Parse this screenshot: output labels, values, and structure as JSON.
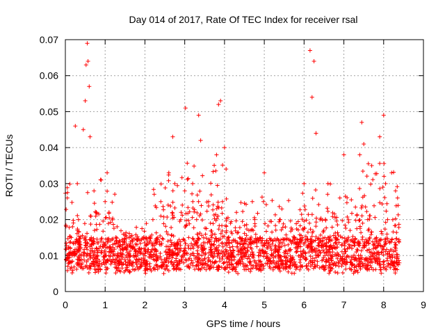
{
  "chart_data": {
    "type": "scatter",
    "title": "Day 014 of 2017, Rate Of TEC Index for receiver rsal",
    "xlabel": "GPS time / hours",
    "ylabel": "ROTI / TECUs",
    "xlim": [
      0,
      9
    ],
    "ylim": [
      0,
      0.07
    ],
    "x_ticks": [
      "0",
      "1",
      "2",
      "3",
      "4",
      "5",
      "6",
      "7",
      "8",
      "9"
    ],
    "y_ticks": [
      "0",
      "0.01",
      "0.02",
      "0.03",
      "0.04",
      "0.05",
      "0.06",
      "0.07"
    ],
    "grid": true,
    "marker": "plus",
    "color": "#ff0000",
    "sampled_points": {
      "x": [
        0.02,
        0.05,
        0.08,
        0.1,
        0.12,
        0.15,
        0.18,
        0.22,
        0.25,
        0.3,
        0.33,
        0.36,
        0.4,
        0.45,
        0.5,
        0.52,
        0.55,
        0.57,
        0.6,
        0.62,
        0.65,
        0.7,
        0.72,
        0.78,
        0.82,
        0.85,
        0.9,
        0.95,
        1.0,
        1.05,
        1.1,
        1.2,
        1.3,
        1.4,
        1.5,
        1.6,
        1.7,
        1.8,
        1.9,
        2.0,
        2.1,
        2.2,
        2.3,
        2.4,
        2.5,
        2.6,
        2.7,
        2.75,
        2.8,
        2.9,
        3.0,
        3.02,
        3.1,
        3.2,
        3.3,
        3.35,
        3.4,
        3.5,
        3.6,
        3.7,
        3.8,
        3.85,
        3.9,
        3.95,
        4.0,
        4.1,
        4.2,
        4.3,
        4.5,
        4.7,
        4.9,
        5.0,
        5.2,
        5.4,
        5.6,
        5.8,
        6.0,
        6.1,
        6.15,
        6.2,
        6.25,
        6.3,
        6.4,
        6.5,
        6.6,
        6.8,
        6.9,
        7.0,
        7.2,
        7.4,
        7.45,
        7.5,
        7.6,
        7.7,
        7.8,
        7.9,
        8.0,
        8.05,
        8.1,
        8.2,
        8.3,
        8.35
      ],
      "y": [
        0.009,
        0.026,
        0.012,
        0.008,
        0.011,
        0.015,
        0.018,
        0.01,
        0.046,
        0.03,
        0.02,
        0.012,
        0.009,
        0.045,
        0.053,
        0.063,
        0.069,
        0.064,
        0.057,
        0.043,
        0.015,
        0.011,
        0.028,
        0.022,
        0.009,
        0.012,
        0.031,
        0.008,
        0.025,
        0.033,
        0.011,
        0.009,
        0.018,
        0.009,
        0.012,
        0.01,
        0.008,
        0.013,
        0.011,
        0.007,
        0.015,
        0.02,
        0.01,
        0.025,
        0.008,
        0.033,
        0.043,
        0.03,
        0.012,
        0.02,
        0.028,
        0.051,
        0.015,
        0.03,
        0.02,
        0.049,
        0.042,
        0.012,
        0.025,
        0.016,
        0.038,
        0.052,
        0.053,
        0.025,
        0.04,
        0.015,
        0.01,
        0.022,
        0.012,
        0.025,
        0.015,
        0.033,
        0.01,
        0.02,
        0.013,
        0.011,
        0.03,
        0.014,
        0.067,
        0.054,
        0.064,
        0.044,
        0.02,
        0.011,
        0.03,
        0.012,
        0.026,
        0.038,
        0.012,
        0.038,
        0.047,
        0.041,
        0.02,
        0.035,
        0.012,
        0.043,
        0.049,
        0.03,
        0.02,
        0.033,
        0.028,
        0.026
      ]
    },
    "bands": [
      {
        "x0": 0.0,
        "x1": 0.55,
        "ymin": 0.005,
        "ymax": 0.03
      },
      {
        "x0": 0.55,
        "x1": 1.25,
        "ymin": 0.005,
        "ymax": 0.032
      },
      {
        "x0": 1.25,
        "x1": 2.2,
        "ymin": 0.005,
        "ymax": 0.019
      },
      {
        "x0": 2.2,
        "x1": 2.9,
        "ymin": 0.005,
        "ymax": 0.035
      },
      {
        "x0": 2.9,
        "x1": 4.1,
        "ymin": 0.006,
        "ymax": 0.036
      },
      {
        "x0": 4.1,
        "x1": 5.9,
        "ymin": 0.005,
        "ymax": 0.027
      },
      {
        "x0": 5.9,
        "x1": 6.6,
        "ymin": 0.006,
        "ymax": 0.03
      },
      {
        "x0": 6.6,
        "x1": 7.3,
        "ymin": 0.005,
        "ymax": 0.031
      },
      {
        "x0": 7.3,
        "x1": 8.4,
        "ymin": 0.005,
        "ymax": 0.036
      }
    ]
  }
}
